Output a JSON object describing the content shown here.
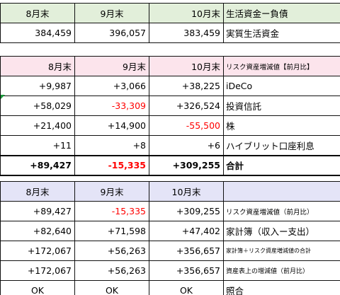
{
  "table1": {
    "header": [
      "8月末",
      "9月末",
      "10月末",
      "生活資金ー負債"
    ],
    "row": [
      "384,459",
      "396,057",
      "383,459",
      "実質生活資金"
    ]
  },
  "table2": {
    "header": [
      "8月末",
      "9月末",
      "10月末",
      "リスク資産増減値【前月比】"
    ],
    "rows": [
      [
        "+9,987",
        "+3,066",
        "+38,225",
        "iDeCo"
      ],
      [
        "+58,029",
        "-33,309",
        "+326,524",
        "投資信託"
      ],
      [
        "+21,400",
        "+14,900",
        "-55,500",
        "株"
      ],
      [
        "+11",
        "+8",
        "+6",
        "ハイブリット口座利息"
      ]
    ],
    "total": [
      "+89,427",
      "-15,335",
      "+309,255",
      "合計"
    ]
  },
  "table3": {
    "header": [
      "8月末",
      "9月末",
      "10月末",
      ""
    ],
    "rows": [
      [
        "+89,427",
        "-15,335",
        "+309,255",
        "リスク資産増減値（前月比）"
      ],
      [
        "+82,640",
        "+71,598",
        "+47,402",
        "家計簿（収入ー支出）"
      ],
      [
        "+172,067",
        "+56,263",
        "+356,657",
        "家計簿＋リスク資産増減値の合計"
      ],
      [
        "+172,067",
        "+56,263",
        "+356,657",
        "資産表上の増減値（前月比）"
      ],
      [
        "OK",
        "OK",
        "OK",
        "照合"
      ]
    ]
  },
  "colors": {
    "header_green": "#e2efda",
    "header_pink": "#fce4ec",
    "header_lavender": "#e4e4f7",
    "negative": "#ff0000"
  }
}
